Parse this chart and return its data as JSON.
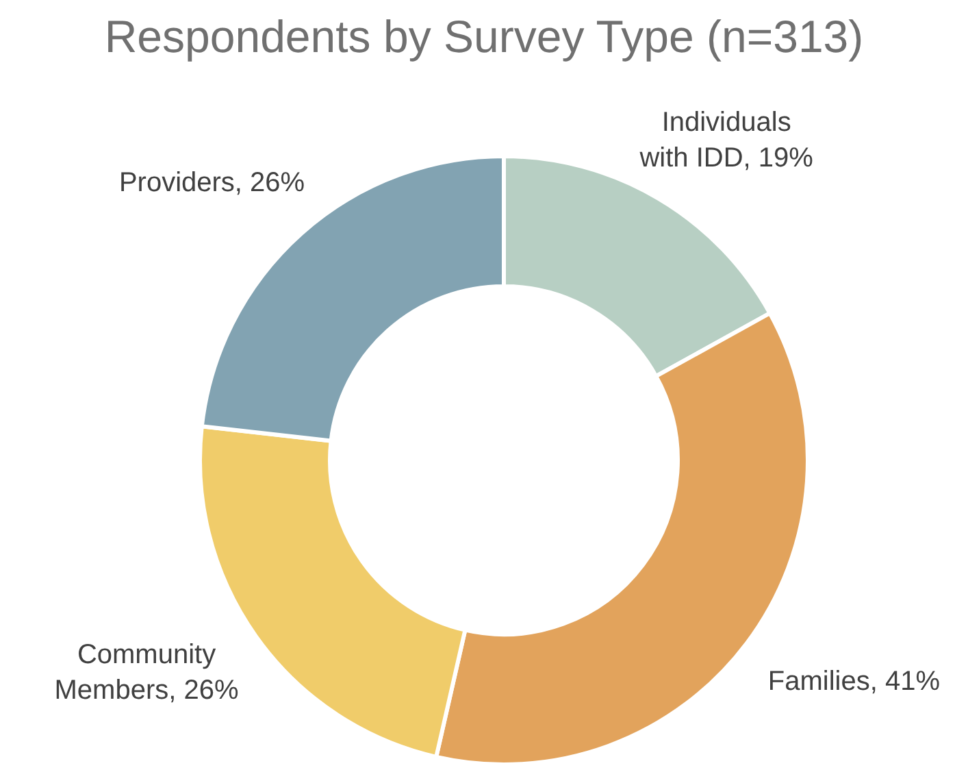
{
  "chart_data": {
    "type": "donut",
    "title": "Respondents by Survey Type (n=313)",
    "categories": [
      "Individuals with IDD",
      "Families",
      "Community Members",
      "Providers"
    ],
    "values": [
      19,
      41,
      26,
      26
    ],
    "value_labels": [
      "19%",
      "41%",
      "26%",
      "26%"
    ],
    "colors": [
      "#b7cfc3",
      "#e2a35c",
      "#f0cc6a",
      "#82a3b2"
    ]
  }
}
